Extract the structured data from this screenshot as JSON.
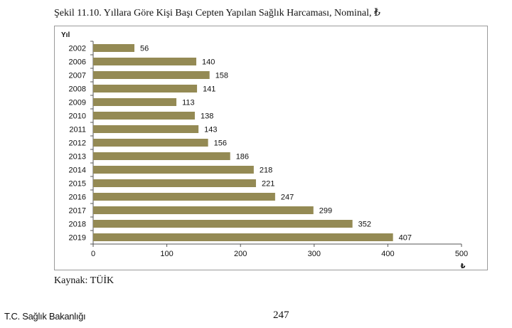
{
  "figure": {
    "title": "Şekil 11.10. Yıllara Göre Kişi Başı Cepten Yapılan Sağlık Harcaması, Nominal, ₺",
    "source": "Kaynak: TÜİK"
  },
  "footer": {
    "organization": "T.C. Sağlık Bakanlığı",
    "page_number": "247"
  },
  "chart_data": {
    "type": "bar",
    "orientation": "horizontal",
    "ylabel": "Yıl",
    "xlabel": "₺",
    "categories": [
      "2002",
      "2006",
      "2007",
      "2008",
      "2009",
      "2010",
      "2011",
      "2012",
      "2013",
      "2014",
      "2015",
      "2016",
      "2017",
      "2018",
      "2019"
    ],
    "values": [
      56,
      140,
      158,
      141,
      113,
      138,
      143,
      156,
      186,
      218,
      221,
      247,
      299,
      352,
      407
    ],
    "xlim": [
      0,
      500
    ],
    "xticks": [
      0,
      100,
      200,
      300,
      400,
      500
    ],
    "grid": false,
    "legend": "none",
    "bar_color": "#948a54"
  }
}
